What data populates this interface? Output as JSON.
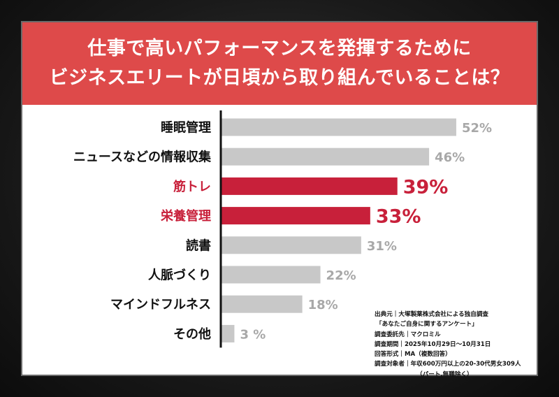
{
  "title": {
    "line1": "仕事で高いパフォーマンスを発揮するために",
    "line2": "ビジネスエリートが日頃から取り組んでいることは？"
  },
  "chart_data": {
    "type": "bar",
    "orientation": "horizontal",
    "categories": [
      "睡眠管理",
      "ニュースなどの情報収集",
      "筋トレ",
      "栄養管理",
      "読書",
      "人脈づくり",
      "マインドフルネス",
      "その他"
    ],
    "values": [
      52,
      46,
      39,
      33,
      31,
      22,
      18,
      3
    ],
    "value_labels": [
      "52%",
      "46%",
      "39%",
      "33%",
      "31%",
      "22%",
      "18%",
      "3 %"
    ],
    "highlighted": [
      false,
      false,
      true,
      true,
      false,
      false,
      false,
      false
    ],
    "xlim": [
      0,
      60
    ],
    "grid": false,
    "colors": {
      "normal": "#c8c8c8",
      "highlight": "#c8203a",
      "label_normal": "#111111",
      "label_highlight": "#c8203a",
      "value_normal": "#a8a8a8",
      "value_highlight": "#c8203a"
    }
  },
  "source": {
    "lines": [
      "出典元｜大塚製薬株式会社による独自調査",
      "「あなたご自身に関するアンケート」",
      "調査委託先｜マクロミル",
      "調査期間｜2025年10月29日～10月31日",
      "回答形式｜MA（複数回答）",
      "調査対象者｜年収600万円以上の20-30代男女309人",
      "（パート,無職除く）"
    ]
  }
}
